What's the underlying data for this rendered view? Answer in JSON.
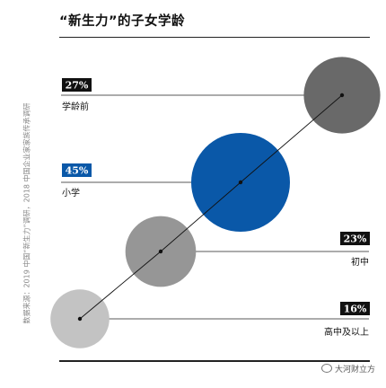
{
  "title": "“新生力”的子女学龄",
  "source_note": "数据来源：2019 中国“新生力”调研，2018 中国企业家家族传承调研",
  "watermark": "大河财立方",
  "chart_data": {
    "type": "bubble",
    "title": "“新生力”的子女学龄",
    "categories": [
      "学龄前",
      "小学",
      "初中",
      "高中及以上"
    ],
    "values": [
      27,
      45,
      23,
      16
    ],
    "value_labels": [
      "27%",
      "45%",
      "23%",
      "16%"
    ],
    "unit": "%",
    "colors": {
      "学龄前": "#696969",
      "小学": "#0a58a8",
      "初中": "#969696",
      "高中及以上": "#c3c3c3"
    },
    "label_box_colors": {
      "学龄前": "#111111",
      "小学": "#0a58a8",
      "初中": "#111111",
      "高中及以上": "#111111"
    },
    "label_side": {
      "学龄前": "left",
      "小学": "left",
      "初中": "right",
      "高中及以上": "right"
    },
    "connector_order": [
      "高中及以上",
      "初中",
      "小学",
      "学龄前"
    ]
  }
}
